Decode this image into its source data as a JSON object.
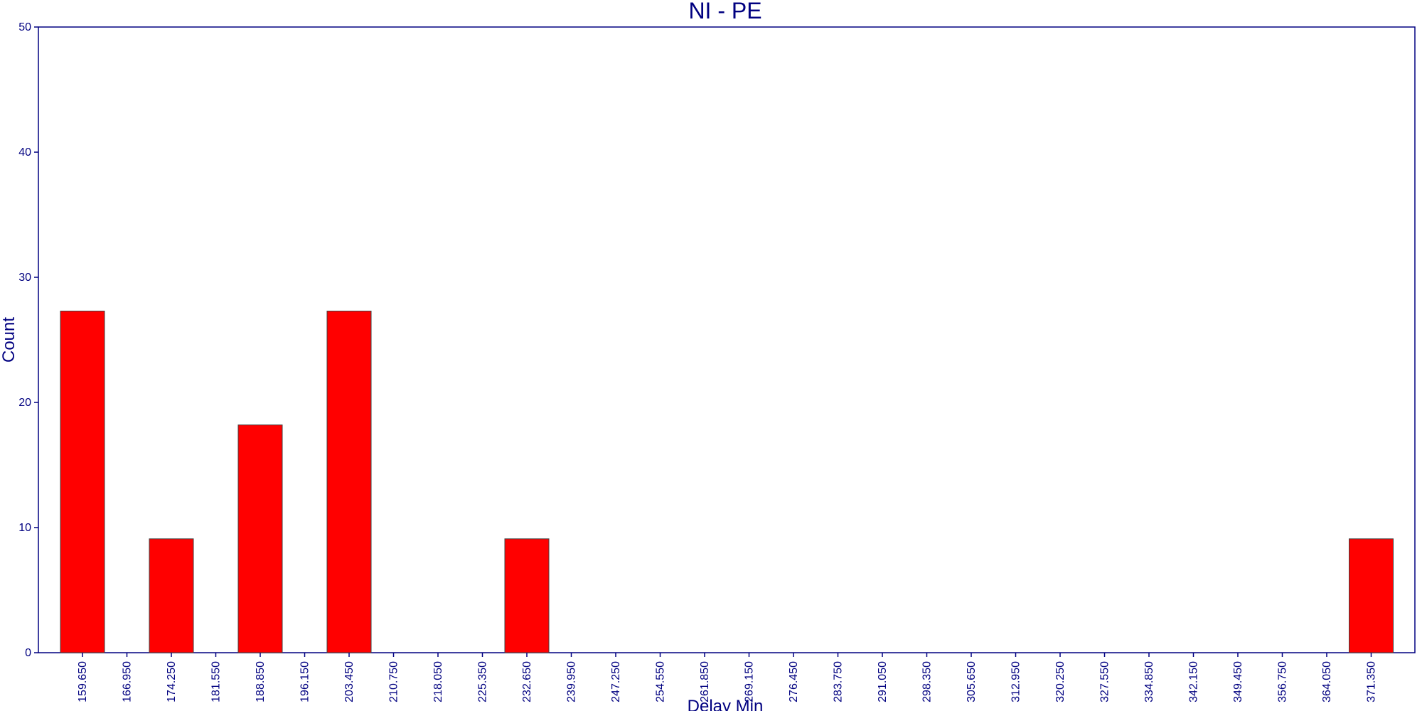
{
  "chart_data": {
    "type": "bar",
    "title": "NI - PE",
    "xlabel": "Delay Min",
    "ylabel": "Count",
    "ylim": [
      0,
      50
    ],
    "yticks": [
      "0",
      "10",
      "20",
      "30",
      "40",
      "50"
    ],
    "categories": [
      "159.650",
      "166.950",
      "174.250",
      "181.550",
      "188.850",
      "196.150",
      "203.450",
      "210.750",
      "218.050",
      "225.350",
      "232.650",
      "239.950",
      "247.250",
      "254.550",
      "261.850",
      "269.150",
      "276.450",
      "283.750",
      "291.050",
      "298.350",
      "305.650",
      "312.950",
      "320.250",
      "327.550",
      "334.850",
      "342.150",
      "349.450",
      "356.750",
      "364.050",
      "371.350"
    ],
    "values": [
      27.3,
      0,
      9.1,
      0,
      18.2,
      0,
      27.3,
      0,
      0,
      0,
      9.1,
      0,
      0,
      0,
      0,
      0,
      0,
      0,
      0,
      0,
      0,
      0,
      0,
      0,
      0,
      0,
      0,
      0,
      0,
      9.1
    ],
    "bar_color": "#ff0000",
    "axis_color": "#000080",
    "grid": false,
    "legend": "none"
  }
}
